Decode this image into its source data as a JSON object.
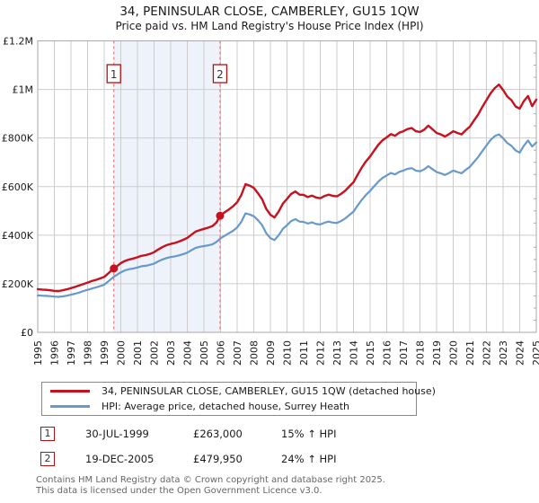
{
  "title": {
    "line1": "34, PENINSULAR CLOSE, CAMBERLEY, GU15 1QW",
    "line2": "Price paid vs. HM Land Registry's House Price Index (HPI)"
  },
  "legend": [
    {
      "label": "34, PENINSULAR CLOSE, CAMBERLEY, GU15 1QW (detached house)",
      "color": "#c9101e"
    },
    {
      "label": "HPI: Average price, detached house, Surrey Heath",
      "color": "#6699cc"
    }
  ],
  "sales": [
    {
      "num": "1",
      "date": "30-JUL-1999",
      "price": "£263,000",
      "hpi_diff": "15% ↑ HPI",
      "year": 1999.58,
      "value": 263
    },
    {
      "num": "2",
      "date": "19-DEC-2005",
      "price": "£479,950",
      "hpi_diff": "24% ↑ HPI",
      "year": 2005.97,
      "value": 479.95
    }
  ],
  "footer": {
    "line1": "Contains HM Land Registry data © Crown copyright and database right 2025.",
    "line2": "This data is licensed under the Open Government Licence v3.0."
  },
  "chart_data": {
    "type": "line",
    "units": "GBP_thousands",
    "xlim": [
      1995,
      2025
    ],
    "ylim": [
      0,
      1200
    ],
    "grid": true,
    "y_ticks": {
      "values": [
        0,
        200,
        400,
        600,
        800,
        1000,
        1200
      ],
      "labels": [
        "£0",
        "£200K",
        "£400K",
        "£600K",
        "£800K",
        "£1M",
        "£1.2M"
      ]
    },
    "y_minor_tick_step": 50,
    "x_ticks": {
      "labels": [
        "1995",
        "1996",
        "1997",
        "1998",
        "1999",
        "2000",
        "2001",
        "2002",
        "2003",
        "2004",
        "2005",
        "2006",
        "2007",
        "2008",
        "2009",
        "2010",
        "2011",
        "2012",
        "2013",
        "2014",
        "2015",
        "2016",
        "2017",
        "2018",
        "2019",
        "2020",
        "2021",
        "2022",
        "2023",
        "2024",
        "2025"
      ]
    },
    "band": {
      "from": 1999.58,
      "to": 2005.97,
      "color": "#eef2fa"
    },
    "marker_line_color": "#ee7777",
    "grid_color": "#cccccc",
    "frame_color": "#aaaaaa",
    "series": [
      {
        "name": "price-paid",
        "color": "#c9101e",
        "width": 2.4,
        "points": [
          [
            1995,
            178
          ],
          [
            1995.25,
            176
          ],
          [
            1995.5,
            175
          ],
          [
            1995.75,
            173
          ],
          [
            1996,
            171
          ],
          [
            1996.25,
            170
          ],
          [
            1996.5,
            173
          ],
          [
            1996.75,
            177
          ],
          [
            1997,
            182
          ],
          [
            1997.25,
            187
          ],
          [
            1997.5,
            193
          ],
          [
            1997.75,
            199
          ],
          [
            1998,
            205
          ],
          [
            1998.25,
            211
          ],
          [
            1998.5,
            216
          ],
          [
            1998.75,
            222
          ],
          [
            1999,
            228
          ],
          [
            1999.25,
            243
          ],
          [
            1999.58,
            263
          ],
          [
            1999.75,
            271
          ],
          [
            2000,
            285
          ],
          [
            2000.25,
            294
          ],
          [
            2000.5,
            300
          ],
          [
            2000.75,
            304
          ],
          [
            2001,
            309
          ],
          [
            2001.25,
            315
          ],
          [
            2001.5,
            318
          ],
          [
            2001.75,
            323
          ],
          [
            2002,
            330
          ],
          [
            2002.25,
            341
          ],
          [
            2002.5,
            351
          ],
          [
            2002.75,
            359
          ],
          [
            2003,
            364
          ],
          [
            2003.25,
            368
          ],
          [
            2003.5,
            374
          ],
          [
            2003.75,
            381
          ],
          [
            2004,
            389
          ],
          [
            2004.25,
            402
          ],
          [
            2004.5,
            415
          ],
          [
            2004.75,
            421
          ],
          [
            2005,
            426
          ],
          [
            2005.25,
            431
          ],
          [
            2005.5,
            437
          ],
          [
            2005.75,
            452
          ],
          [
            2005.97,
            480
          ],
          [
            2006.25,
            494
          ],
          [
            2006.5,
            506
          ],
          [
            2006.75,
            519
          ],
          [
            2007,
            536
          ],
          [
            2007.25,
            565
          ],
          [
            2007.5,
            610
          ],
          [
            2007.75,
            604
          ],
          [
            2008,
            595
          ],
          [
            2008.25,
            573
          ],
          [
            2008.5,
            548
          ],
          [
            2008.75,
            508
          ],
          [
            2009,
            484
          ],
          [
            2009.25,
            473
          ],
          [
            2009.5,
            498
          ],
          [
            2009.75,
            530
          ],
          [
            2010,
            549
          ],
          [
            2010.25,
            570
          ],
          [
            2010.5,
            580
          ],
          [
            2010.75,
            567
          ],
          [
            2011,
            566
          ],
          [
            2011.25,
            557
          ],
          [
            2011.5,
            563
          ],
          [
            2011.75,
            555
          ],
          [
            2012,
            552
          ],
          [
            2012.25,
            561
          ],
          [
            2012.5,
            567
          ],
          [
            2012.75,
            562
          ],
          [
            2013,
            560
          ],
          [
            2013.25,
            570
          ],
          [
            2013.5,
            583
          ],
          [
            2013.75,
            601
          ],
          [
            2014,
            618
          ],
          [
            2014.25,
            649
          ],
          [
            2014.5,
            679
          ],
          [
            2014.75,
            704
          ],
          [
            2015,
            724
          ],
          [
            2015.25,
            749
          ],
          [
            2015.5,
            773
          ],
          [
            2015.75,
            791
          ],
          [
            2016,
            803
          ],
          [
            2016.25,
            816
          ],
          [
            2016.5,
            809
          ],
          [
            2016.75,
            822
          ],
          [
            2017,
            828
          ],
          [
            2017.25,
            837
          ],
          [
            2017.5,
            841
          ],
          [
            2017.75,
            828
          ],
          [
            2018,
            825
          ],
          [
            2018.25,
            834
          ],
          [
            2018.5,
            851
          ],
          [
            2018.75,
            836
          ],
          [
            2019,
            821
          ],
          [
            2019.25,
            815
          ],
          [
            2019.5,
            806
          ],
          [
            2019.75,
            816
          ],
          [
            2020,
            828
          ],
          [
            2020.25,
            821
          ],
          [
            2020.5,
            815
          ],
          [
            2020.75,
            832
          ],
          [
            2021,
            847
          ],
          [
            2021.25,
            872
          ],
          [
            2021.5,
            897
          ],
          [
            2021.75,
            928
          ],
          [
            2022,
            956
          ],
          [
            2022.25,
            984
          ],
          [
            2022.5,
            1006
          ],
          [
            2022.75,
            1020
          ],
          [
            2023,
            998
          ],
          [
            2023.25,
            971
          ],
          [
            2023.5,
            956
          ],
          [
            2023.75,
            930
          ],
          [
            2024,
            921
          ],
          [
            2024.25,
            952
          ],
          [
            2024.5,
            973
          ],
          [
            2024.75,
            931
          ],
          [
            2025,
            958
          ]
        ]
      },
      {
        "name": "hpi",
        "color": "#6699cc",
        "width": 2.2,
        "points": [
          [
            1995,
            152
          ],
          [
            1995.25,
            151
          ],
          [
            1995.5,
            150
          ],
          [
            1995.75,
            149
          ],
          [
            1996,
            147
          ],
          [
            1996.25,
            146
          ],
          [
            1996.5,
            148
          ],
          [
            1996.75,
            151
          ],
          [
            1997,
            155
          ],
          [
            1997.25,
            159
          ],
          [
            1997.5,
            164
          ],
          [
            1997.75,
            170
          ],
          [
            1998,
            175
          ],
          [
            1998.25,
            180
          ],
          [
            1998.5,
            185
          ],
          [
            1998.75,
            190
          ],
          [
            1999,
            196
          ],
          [
            1999.25,
            210
          ],
          [
            1999.58,
            229
          ],
          [
            1999.75,
            236
          ],
          [
            2000,
            247
          ],
          [
            2000.25,
            255
          ],
          [
            2000.5,
            260
          ],
          [
            2000.75,
            263
          ],
          [
            2001,
            267
          ],
          [
            2001.25,
            272
          ],
          [
            2001.5,
            274
          ],
          [
            2001.75,
            278
          ],
          [
            2002,
            283
          ],
          [
            2002.25,
            292
          ],
          [
            2002.5,
            300
          ],
          [
            2002.75,
            306
          ],
          [
            2003,
            310
          ],
          [
            2003.25,
            313
          ],
          [
            2003.5,
            317
          ],
          [
            2003.75,
            322
          ],
          [
            2004,
            328
          ],
          [
            2004.25,
            338
          ],
          [
            2004.5,
            348
          ],
          [
            2004.75,
            352
          ],
          [
            2005,
            355
          ],
          [
            2005.25,
            358
          ],
          [
            2005.5,
            362
          ],
          [
            2005.75,
            372
          ],
          [
            2006,
            387
          ],
          [
            2006.25,
            398
          ],
          [
            2006.5,
            408
          ],
          [
            2006.75,
            418
          ],
          [
            2007,
            432
          ],
          [
            2007.25,
            455
          ],
          [
            2007.5,
            490
          ],
          [
            2007.75,
            485
          ],
          [
            2008,
            478
          ],
          [
            2008.25,
            462
          ],
          [
            2008.5,
            441
          ],
          [
            2008.75,
            408
          ],
          [
            2009,
            388
          ],
          [
            2009.25,
            380
          ],
          [
            2009.5,
            400
          ],
          [
            2009.75,
            426
          ],
          [
            2010,
            441
          ],
          [
            2010.25,
            458
          ],
          [
            2010.5,
            466
          ],
          [
            2010.75,
            456
          ],
          [
            2011,
            455
          ],
          [
            2011.25,
            448
          ],
          [
            2011.5,
            453
          ],
          [
            2011.75,
            446
          ],
          [
            2012,
            444
          ],
          [
            2012.25,
            451
          ],
          [
            2012.5,
            456
          ],
          [
            2012.75,
            452
          ],
          [
            2013,
            450
          ],
          [
            2013.25,
            458
          ],
          [
            2013.5,
            469
          ],
          [
            2013.75,
            483
          ],
          [
            2014,
            497
          ],
          [
            2014.25,
            522
          ],
          [
            2014.5,
            546
          ],
          [
            2014.75,
            566
          ],
          [
            2015,
            582
          ],
          [
            2015.25,
            602
          ],
          [
            2015.5,
            621
          ],
          [
            2015.75,
            636
          ],
          [
            2016,
            646
          ],
          [
            2016.25,
            656
          ],
          [
            2016.5,
            650
          ],
          [
            2016.75,
            661
          ],
          [
            2017,
            666
          ],
          [
            2017.25,
            673
          ],
          [
            2017.5,
            676
          ],
          [
            2017.75,
            666
          ],
          [
            2018,
            663
          ],
          [
            2018.25,
            671
          ],
          [
            2018.5,
            684
          ],
          [
            2018.75,
            672
          ],
          [
            2019,
            660
          ],
          [
            2019.25,
            655
          ],
          [
            2019.5,
            648
          ],
          [
            2019.75,
            656
          ],
          [
            2020,
            666
          ],
          [
            2020.25,
            660
          ],
          [
            2020.5,
            655
          ],
          [
            2020.75,
            669
          ],
          [
            2021,
            681
          ],
          [
            2021.25,
            701
          ],
          [
            2021.5,
            722
          ],
          [
            2021.75,
            746
          ],
          [
            2022,
            769
          ],
          [
            2022.25,
            792
          ],
          [
            2022.5,
            808
          ],
          [
            2022.75,
            815
          ],
          [
            2023,
            799
          ],
          [
            2023.25,
            780
          ],
          [
            2023.5,
            768
          ],
          [
            2023.75,
            749
          ],
          [
            2024,
            740
          ],
          [
            2024.25,
            768
          ],
          [
            2024.5,
            790
          ],
          [
            2024.75,
            765
          ],
          [
            2025,
            782
          ]
        ]
      }
    ]
  }
}
